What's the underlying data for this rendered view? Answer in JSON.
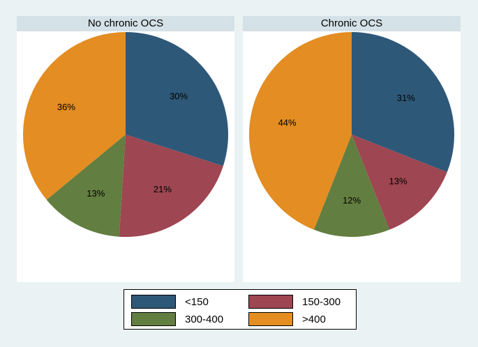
{
  "chart_data": [
    {
      "type": "pie",
      "title": "No chronic OCS",
      "categories": [
        "<150",
        "150-300",
        "300-400",
        ">400"
      ],
      "values": [
        30,
        21,
        13,
        36
      ],
      "labels": [
        "30%",
        "21%",
        "13%",
        "36%"
      ]
    },
    {
      "type": "pie",
      "title": "Chronic OCS",
      "categories": [
        "<150",
        "150-300",
        "300-400",
        ">400"
      ],
      "values": [
        31,
        13,
        12,
        44
      ],
      "labels": [
        "31%",
        "13%",
        "12%",
        "44%"
      ]
    }
  ],
  "colors": [
    "#2e5878",
    "#9e4651",
    "#627e40",
    "#e38d22"
  ],
  "legend": {
    "placement": "bottom",
    "items": [
      "<150",
      "150-300",
      "300-400",
      ">400"
    ]
  }
}
